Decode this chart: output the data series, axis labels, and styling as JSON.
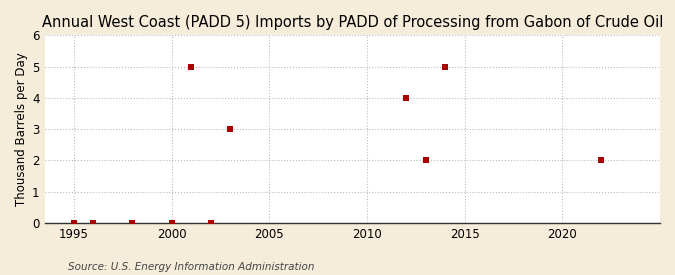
{
  "title": "Annual West Coast (PADD 5) Imports by PADD of Processing from Gabon of Crude Oil",
  "ylabel": "Thousand Barrels per Day",
  "source": "Source: U.S. Energy Information Administration",
  "background_color": "#f5edda",
  "plot_background_color": "#ffffff",
  "data_points": [
    [
      1995,
      0
    ],
    [
      1996,
      0
    ],
    [
      1998,
      0
    ],
    [
      2000,
      0
    ],
    [
      2001,
      5
    ],
    [
      2002,
      0
    ],
    [
      2003,
      3
    ],
    [
      2012,
      4
    ],
    [
      2013,
      2
    ],
    [
      2014,
      5
    ],
    [
      2022,
      2
    ]
  ],
  "marker_color": "#aa0000",
  "marker_size": 18,
  "xlim": [
    1993.5,
    2025
  ],
  "ylim": [
    0,
    6
  ],
  "xticks": [
    1995,
    2000,
    2005,
    2010,
    2015,
    2020
  ],
  "yticks": [
    0,
    1,
    2,
    3,
    4,
    5,
    6
  ],
  "grid_color": "#bbbbbb",
  "grid_linestyle": "--",
  "title_fontsize": 10.5,
  "axis_fontsize": 8.5,
  "source_fontsize": 7.5
}
